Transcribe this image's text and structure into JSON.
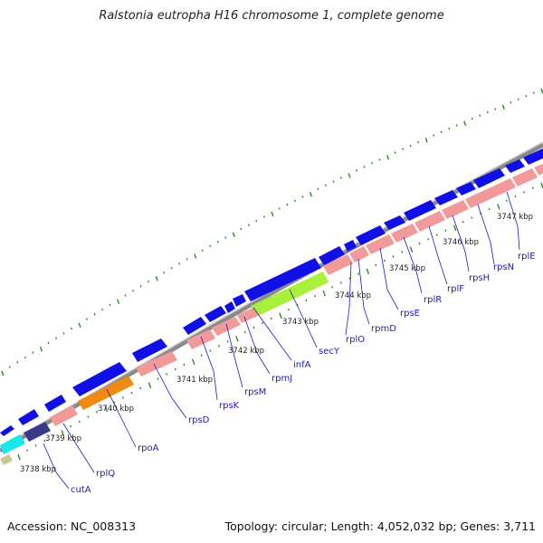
{
  "title": "Ralstonia eutropha H16 chromosome 1, complete genome",
  "accession": "Accession: NC_008313",
  "summary": "Topology: circular; Length: 4,052,032 bp; Genes: 3,711",
  "colors": {
    "forward_cds": "#1010e6",
    "rna_gene": "#f29a9a",
    "highlight_green": "#a8f03c",
    "highlight_orange": "#f08a10",
    "highlight_cyan": "#18e8e8",
    "highlight_navy": "#3a3a8a",
    "highlight_tan": "#c8c890",
    "gc_skew": "#2a8a2a",
    "backbone": "#8a8a8a"
  },
  "kbp_labels": [
    "3738 kbp",
    "3739 kbp",
    "3740 kbp",
    "3741 kbp",
    "3742 kbp",
    "3743 kbp",
    "3744 kbp",
    "3745 kbp",
    "3746 kbp",
    "3747 kbp"
  ],
  "gene_labels": [
    "cutA",
    "rplQ",
    "rpoA",
    "rpsD",
    "rpsK",
    "rpsM",
    "rpmJ",
    "infA",
    "secY",
    "rplO",
    "rpmD",
    "rpsE",
    "rplR",
    "rplF",
    "rpsH",
    "rpsN",
    "rplE"
  ]
}
